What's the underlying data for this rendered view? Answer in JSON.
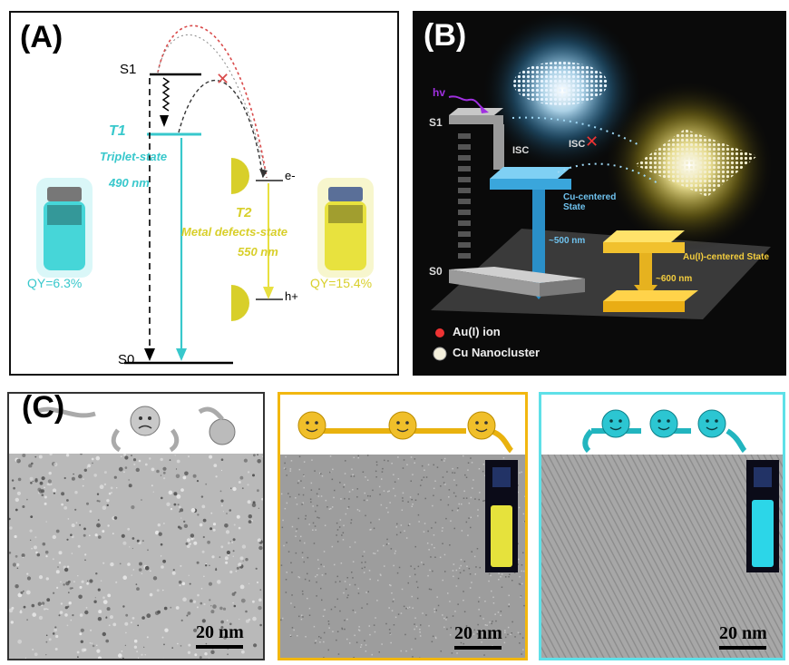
{
  "panelA": {
    "letter": "(A)",
    "levels": {
      "s1": "S1",
      "t1": "T1",
      "s0": "S0",
      "t2": "T2"
    },
    "labels": {
      "triplet_line1": "Triplet-state",
      "triplet_line2": "490 nm",
      "metal_line1": "Metal defects-state",
      "metal_line2": "550 nm",
      "electron": "e-",
      "hole": "h+",
      "qy_left": "QY=6.3%",
      "qy_right": "QY=15.4%",
      "cross": "✕"
    },
    "colors": {
      "cyan": "#38c8cc",
      "yellow": "#e8e040",
      "red": "#d94b4b"
    }
  },
  "panelB": {
    "letter": "(B)",
    "labels": {
      "hv": "hv",
      "s1": "S1",
      "s0": "S0",
      "isc1": "ISC",
      "isc2": "ISC",
      "cu_state_line1": "Cu-centered",
      "cu_state_line2": "State",
      "nm500": "~500 nm",
      "au_state": "Au(I)-centered State",
      "nm600": "~600 nm",
      "legend_au": "Au(I) ion",
      "legend_cu": "Cu Nanocluster"
    }
  },
  "panelC": {
    "letter": "(C)",
    "scalebars": [
      "20 nm",
      "20 nm",
      "20 nm"
    ],
    "colors": {
      "gray": "#9a9a9a",
      "gold": "#f2b70f",
      "cyan": "#5fe0e8"
    }
  }
}
